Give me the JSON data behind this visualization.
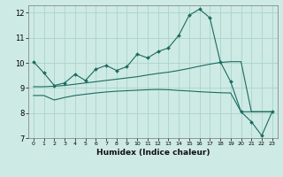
{
  "title": "",
  "xlabel": "Humidex (Indice chaleur)",
  "ylabel": "",
  "bg_color": "#ceeae4",
  "grid_color": "#a8d4cc",
  "line_color": "#1a6b60",
  "xlim": [
    -0.5,
    23.5
  ],
  "ylim": [
    7,
    12.3
  ],
  "yticks": [
    7,
    8,
    9,
    10,
    11,
    12
  ],
  "xticks": [
    0,
    1,
    2,
    3,
    4,
    5,
    6,
    7,
    8,
    9,
    10,
    11,
    12,
    13,
    14,
    15,
    16,
    17,
    18,
    19,
    20,
    21,
    22,
    23
  ],
  "line1_x": [
    0,
    1,
    2,
    3,
    4,
    5,
    6,
    7,
    8,
    9,
    10,
    11,
    12,
    13,
    14,
    15,
    16,
    17,
    18,
    19,
    20,
    21,
    22,
    23
  ],
  "line1_y": [
    10.05,
    9.6,
    9.1,
    9.2,
    9.55,
    9.3,
    9.75,
    9.9,
    9.7,
    9.85,
    10.35,
    10.2,
    10.45,
    10.6,
    11.1,
    11.9,
    12.15,
    11.8,
    10.05,
    9.25,
    8.05,
    7.65,
    7.1,
    8.05
  ],
  "line2_x": [
    0,
    1,
    2,
    3,
    4,
    5,
    6,
    7,
    8,
    9,
    10,
    11,
    12,
    13,
    14,
    15,
    16,
    17,
    18,
    19,
    20,
    21,
    22,
    23
  ],
  "line2_y": [
    9.05,
    9.05,
    9.07,
    9.1,
    9.15,
    9.2,
    9.25,
    9.3,
    9.35,
    9.4,
    9.45,
    9.52,
    9.58,
    9.63,
    9.7,
    9.78,
    9.87,
    9.95,
    10.02,
    10.05,
    10.05,
    8.05,
    8.05,
    8.05
  ],
  "line3_x": [
    0,
    1,
    2,
    3,
    4,
    5,
    6,
    7,
    8,
    9,
    10,
    11,
    12,
    13,
    14,
    15,
    16,
    17,
    18,
    19,
    20,
    21,
    22,
    23
  ],
  "line3_y": [
    8.7,
    8.7,
    8.52,
    8.62,
    8.7,
    8.75,
    8.8,
    8.84,
    8.87,
    8.89,
    8.91,
    8.93,
    8.94,
    8.93,
    8.9,
    8.88,
    8.85,
    8.83,
    8.81,
    8.8,
    8.05,
    8.05,
    8.05,
    8.05
  ]
}
